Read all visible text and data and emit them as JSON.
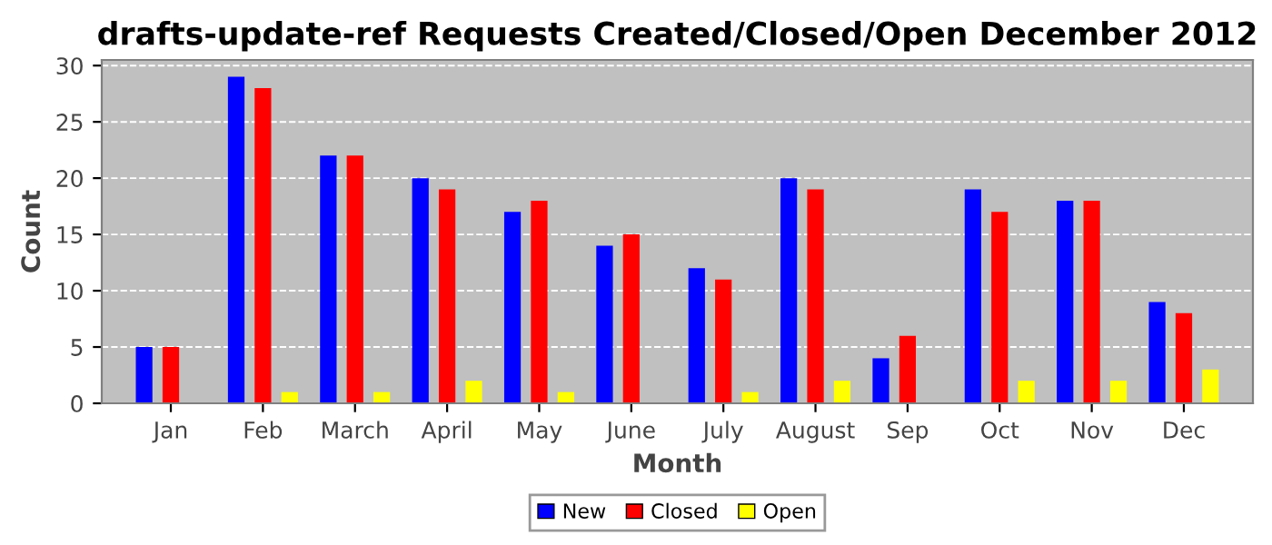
{
  "chart_data": {
    "type": "bar",
    "title": "drafts-update-ref Requests Created/Closed/Open December 2012",
    "xlabel": "Month",
    "ylabel": "Count",
    "categories": [
      "Jan",
      "Feb",
      "March",
      "April",
      "May",
      "June",
      "July",
      "August",
      "Sep",
      "Oct",
      "Nov",
      "Dec"
    ],
    "series": [
      {
        "name": "New",
        "color": "#0000ff",
        "values": [
          5,
          29,
          22,
          20,
          17,
          14,
          12,
          20,
          4,
          19,
          18,
          9
        ]
      },
      {
        "name": "Closed",
        "color": "#ff0000",
        "values": [
          5,
          28,
          22,
          19,
          18,
          15,
          11,
          19,
          6,
          17,
          18,
          8
        ]
      },
      {
        "name": "Open",
        "color": "#ffff00",
        "values": [
          0,
          1,
          1,
          2,
          1,
          0,
          1,
          2,
          0,
          2,
          2,
          3
        ]
      }
    ],
    "ylim": [
      0,
      30.5
    ],
    "yticks": [
      0,
      5,
      10,
      15,
      20,
      25,
      30
    ],
    "grid": "y",
    "legend": "bottom"
  }
}
